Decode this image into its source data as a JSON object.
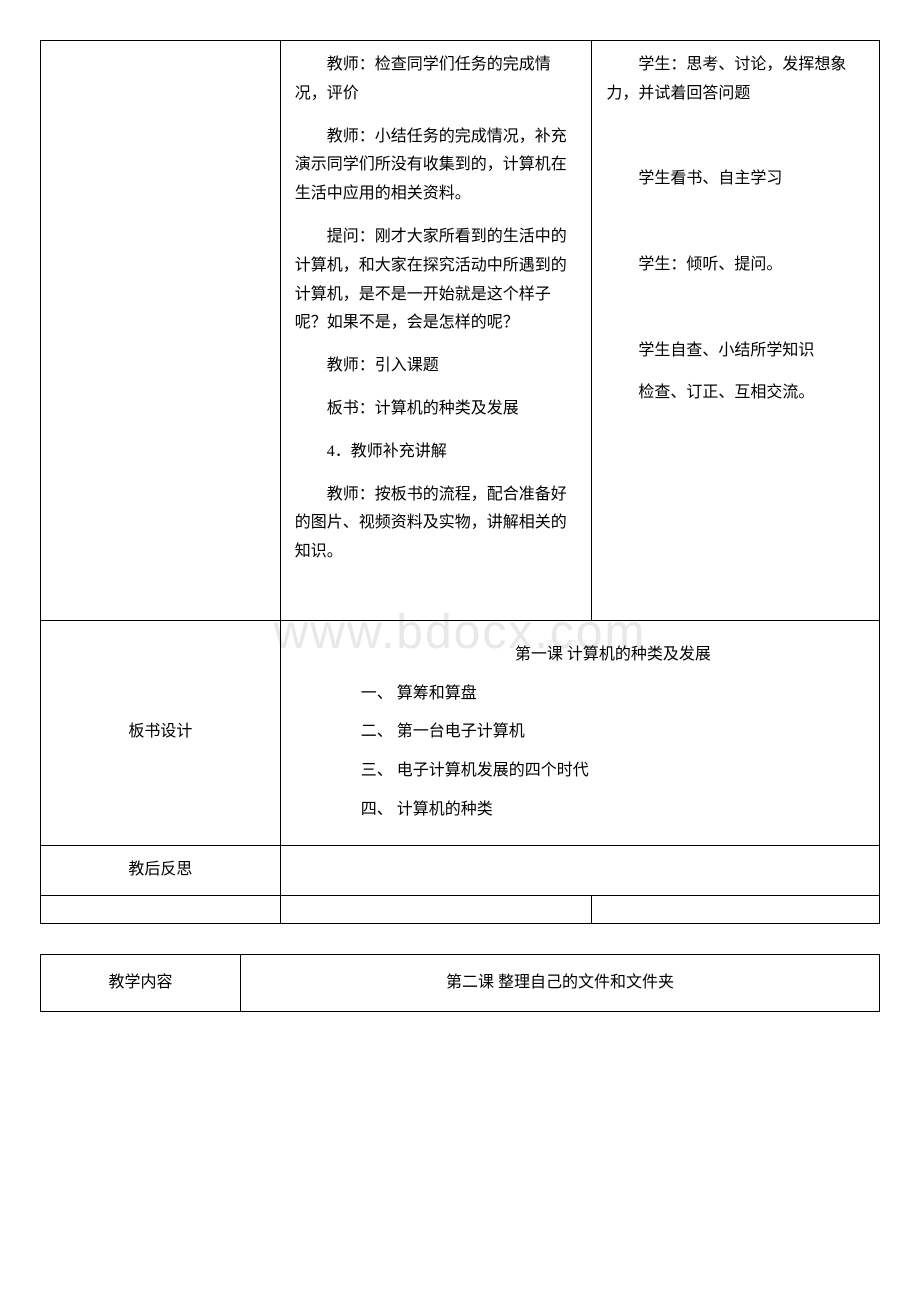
{
  "watermark": "www.bdocx.com",
  "table1": {
    "row1": {
      "teacher": {
        "p1": "教师：检查同学们任务的完成情况，评价",
        "p2": "教师：小结任务的完成情况，补充演示同学们所没有收集到的，计算机在生活中应用的相关资料。",
        "p3": "提问：刚才大家所看到的生活中的计算机，和大家在探究活动中所遇到的计算机，是不是一开始就是这个样子呢？如果不是，会是怎样的呢？",
        "p4": "教师：引入课题",
        "p5": "板书：计算机的种类及发展",
        "p6": "4．教师补充讲解",
        "p7": "教师：按板书的流程，配合准备好的图片、视频资料及实物，讲解相关的知识。"
      },
      "student": {
        "p1": "学生：思考、讨论，发挥想象力，并试着回答问题",
        "p2": "学生看书、自主学习",
        "p3": "学生：倾听、提问。",
        "p4": "学生自查、小结所学知识",
        "p5": "检查、订正、互相交流。"
      }
    },
    "row2": {
      "label": "板书设计",
      "content": {
        "title": "第一课 计算机的种类及发展",
        "item1": "一、 算筹和算盘",
        "item2": "二、 第一台电子计算机",
        "item3": "三、 电子计算机发展的四个时代",
        "item4": "四、 计算机的种类"
      }
    },
    "row3": {
      "label": "教后反思"
    }
  },
  "table2": {
    "row1": {
      "label": "教学内容",
      "content": "第二课 整理自己的文件和文件夹"
    }
  }
}
